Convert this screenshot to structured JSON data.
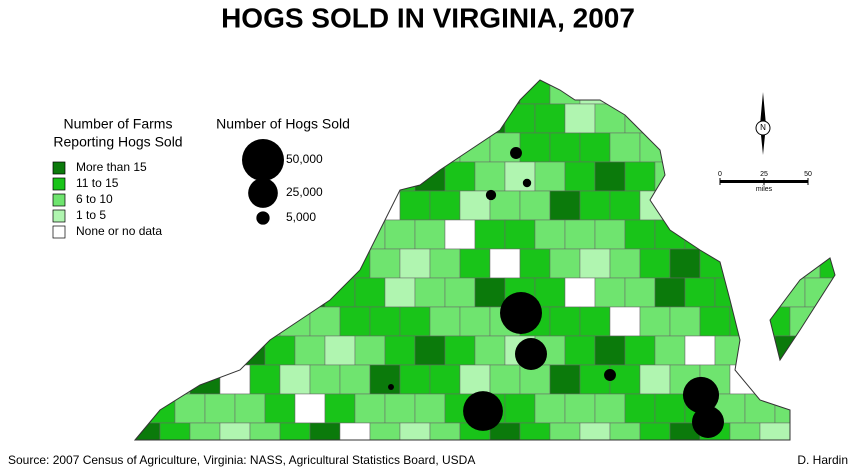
{
  "title": "HOGS SOLD IN VIRGINIA, 2007",
  "farms_legend": {
    "title_lines": [
      "Number of Farms",
      "Reporting Hogs Sold"
    ],
    "items": [
      {
        "label": "More than 15",
        "color": "#0b7a0b"
      },
      {
        "label": "11 to 15",
        "color": "#19c419"
      },
      {
        "label": "6 to 10",
        "color": "#6fe46f"
      },
      {
        "label": "1 to   5",
        "color": "#b0f5b0"
      },
      {
        "label": "None or no data",
        "color": "#ffffff"
      }
    ]
  },
  "hogs_legend": {
    "title": "Number of Hogs Sold",
    "sizes": [
      {
        "value": 50000,
        "label": "50,000"
      },
      {
        "value": 25000,
        "label": "25,000"
      },
      {
        "value": 5000,
        "label": "5,000"
      }
    ]
  },
  "hog_symbols": [
    50000,
    29000,
    45000,
    37000,
    29000,
    4000,
    4000,
    3000,
    2000,
    1000
  ],
  "north": "N",
  "scale": {
    "ticks": [
      0,
      25,
      50
    ],
    "unit": "miles"
  },
  "source": "Source: 2007 Census of Agriculture, Virginia: NASS, Agricultural Statistics Board, USDA",
  "author": "D. Hardin"
}
